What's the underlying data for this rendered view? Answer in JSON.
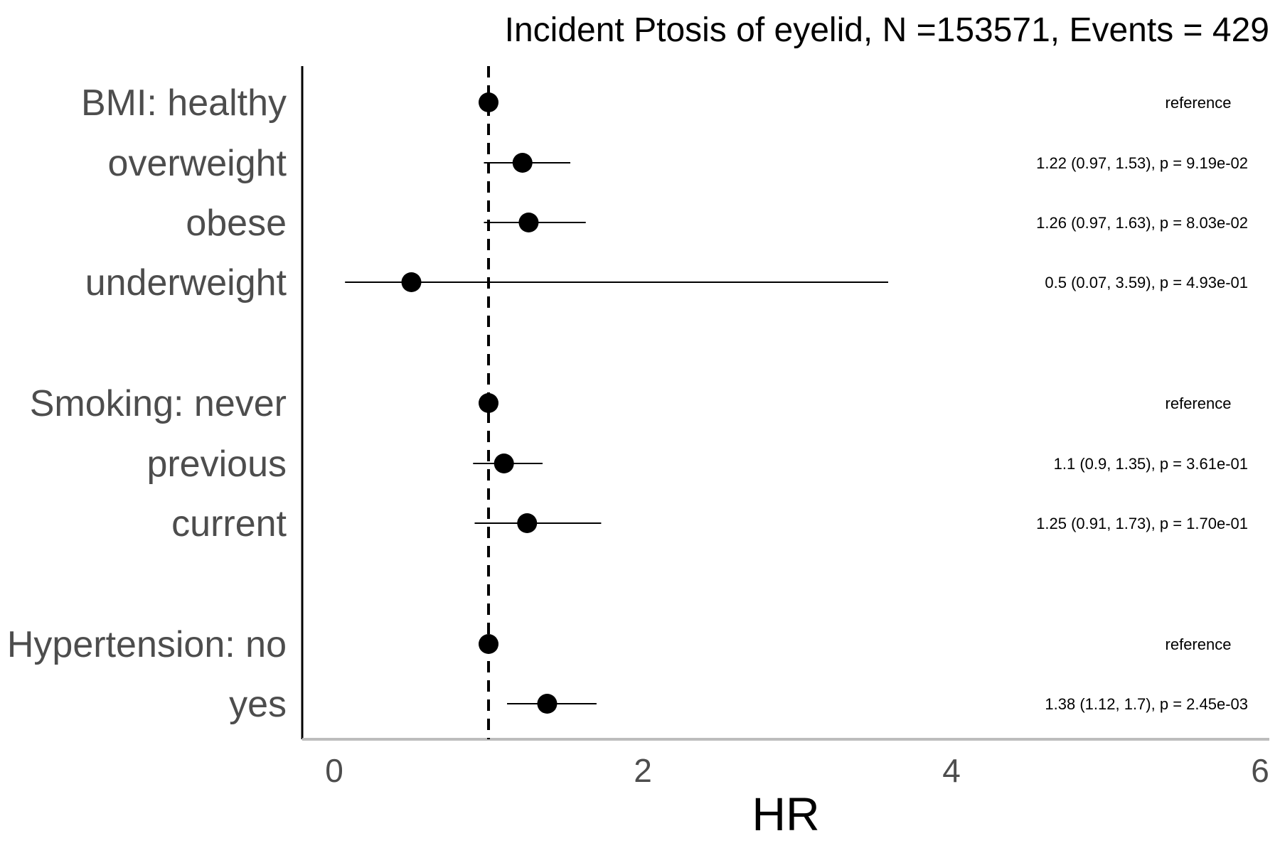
{
  "chart_data": {
    "type": "forest",
    "title": "Incident Ptosis of eyelid, N =153571, Events = 429",
    "xlabel": "HR",
    "xlim": [
      -0.2,
      6.1
    ],
    "xticks": [
      0,
      2,
      4,
      6
    ],
    "xtick_labels": [
      "0",
      "2",
      "4",
      "6"
    ],
    "reference_line": 1,
    "rows": [
      {
        "label": "BMI: healthy",
        "hr": 1.0,
        "lo": null,
        "hi": null,
        "annotation": "reference"
      },
      {
        "label": "overweight",
        "hr": 1.22,
        "lo": 0.97,
        "hi": 1.53,
        "annotation": "1.22 (0.97, 1.53), p = 9.19e-02"
      },
      {
        "label": "obese",
        "hr": 1.26,
        "lo": 0.97,
        "hi": 1.63,
        "annotation": "1.26 (0.97, 1.63), p = 8.03e-02"
      },
      {
        "label": "underweight",
        "hr": 0.5,
        "lo": 0.07,
        "hi": 3.59,
        "annotation": "0.5 (0.07, 3.59), p = 4.93e-01"
      },
      {
        "label": "Smoking: never",
        "hr": 1.0,
        "lo": null,
        "hi": null,
        "annotation": "reference"
      },
      {
        "label": "previous",
        "hr": 1.1,
        "lo": 0.9,
        "hi": 1.35,
        "annotation": "1.1 (0.9, 1.35), p = 3.61e-01"
      },
      {
        "label": "current",
        "hr": 1.25,
        "lo": 0.91,
        "hi": 1.73,
        "annotation": "1.25 (0.91, 1.73), p = 1.70e-01"
      },
      {
        "label": "Hypertension: no",
        "hr": 1.0,
        "lo": null,
        "hi": null,
        "annotation": "reference"
      },
      {
        "label": "yes",
        "hr": 1.38,
        "lo": 1.12,
        "hi": 1.7,
        "annotation": "1.38 (1.12, 1.7), p = 2.45e-03"
      }
    ]
  }
}
